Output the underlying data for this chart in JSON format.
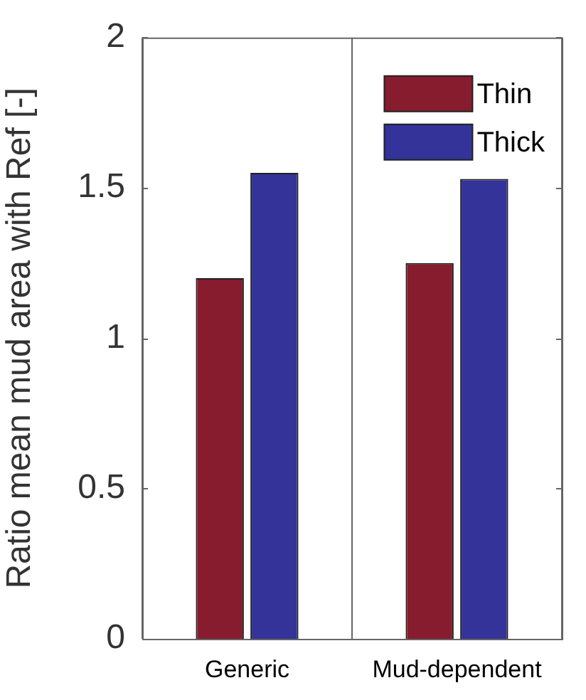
{
  "chart_data": {
    "type": "bar",
    "ylabel": "Ratio mean mud area with Ref [-]",
    "categories": [
      "Generic",
      "Mud-dependent"
    ],
    "series": [
      {
        "name": "Thin",
        "color": "#861c2d",
        "values": [
          1.2,
          1.25
        ]
      },
      {
        "name": "Thick",
        "color": "#333399",
        "values": [
          1.55,
          1.53
        ]
      }
    ],
    "ylim": [
      0,
      2
    ],
    "yticks": [
      0,
      0.5,
      1,
      1.5,
      2
    ],
    "grid": "x",
    "legend": "top right"
  }
}
